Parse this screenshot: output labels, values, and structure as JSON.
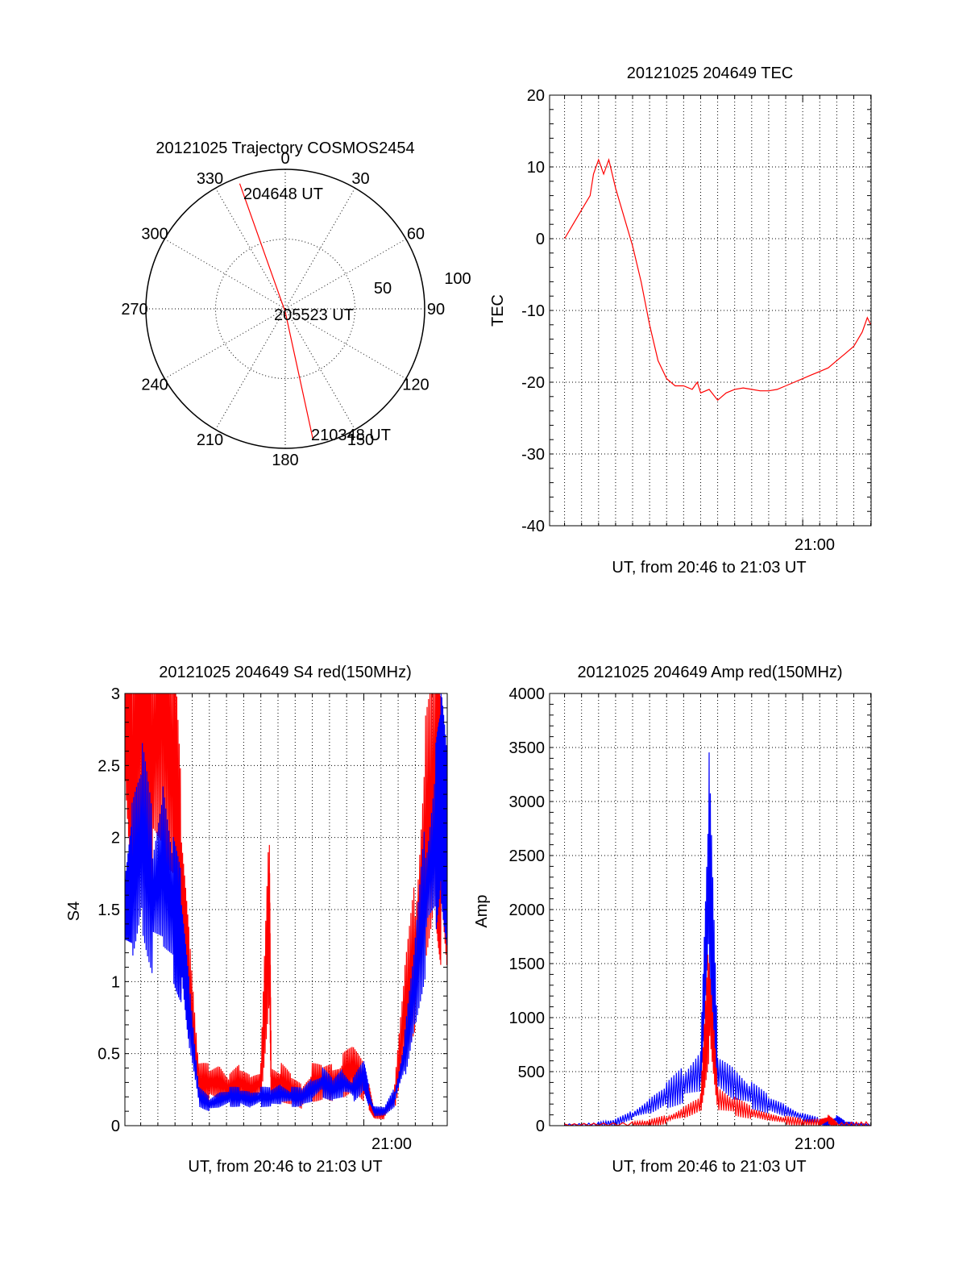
{
  "chart_data": [
    {
      "type": "polar",
      "title": "20121025 Trajectory COSMOS2454",
      "azimuth_labels": [
        "0",
        "30",
        "60",
        "90",
        "120",
        "150",
        "180",
        "210",
        "240",
        "270",
        "300",
        "330"
      ],
      "radius_labels": [
        "50",
        "100"
      ],
      "trajectory": {
        "color": "#ff0000",
        "start_label": "204648 UT",
        "mid_label": "205523 UT",
        "end_label": "210348 UT",
        "points": [
          {
            "az": 340,
            "zen": 86
          },
          {
            "az": 180,
            "zen": 2
          },
          {
            "az": 168,
            "zen": 86
          }
        ]
      }
    },
    {
      "type": "line",
      "title": "20121025 204649 TEC",
      "xlabel": "UT, from 20:46 to 21:03 UT",
      "ylabel": "TEC",
      "xlim": [
        20.752,
        21.067
      ],
      "ylim": [
        -40,
        20
      ],
      "yticks": [
        20,
        10,
        0,
        -10,
        -20,
        -30,
        -40
      ],
      "xtick_label": "21:00",
      "grid": true,
      "series": [
        {
          "color": "#ff0000",
          "x": [
            20.7667,
            20.775,
            20.7833,
            20.7917,
            20.795,
            20.8,
            20.805,
            20.81,
            20.8167,
            20.825,
            20.8333,
            20.8417,
            20.85,
            20.8583,
            20.8667,
            20.875,
            20.8833,
            20.8917,
            20.8967,
            20.9,
            20.9083,
            20.9167,
            20.925,
            20.9333,
            20.9417,
            20.95,
            20.9583,
            20.9667,
            20.975,
            20.9833,
            20.9917,
            21.0,
            21.0083,
            21.0167,
            21.025,
            21.0333,
            21.0417,
            21.05,
            21.0583,
            21.0633,
            21.0667
          ],
          "y": [
            0,
            2,
            4,
            6,
            9,
            11,
            9,
            11,
            7,
            3,
            -1,
            -6,
            -12,
            -17,
            -19.5,
            -20.5,
            -20.5,
            -21,
            -20,
            -21.5,
            -21,
            -22.5,
            -21.5,
            -21,
            -20.8,
            -21,
            -21.2,
            -21.2,
            -21,
            -20.5,
            -20,
            -19.5,
            -19,
            -18.5,
            -18,
            -17,
            -16,
            -15,
            -13,
            -11,
            -12
          ]
        }
      ]
    },
    {
      "type": "line",
      "title": "20121025 204649 S4 red(150MHz)",
      "xlabel": "UT, from 20:46 to 21:03 UT",
      "ylabel": "S4",
      "xlim": [
        20.768,
        21.081
      ],
      "ylim": [
        0,
        3
      ],
      "yticks": [
        3,
        2.5,
        2,
        1.5,
        1,
        0.5,
        0
      ],
      "xtick_label": "21:00",
      "grid": true,
      "series": [
        {
          "color": "#ff0000",
          "x": [
            20.768,
            20.775,
            20.785,
            20.795,
            20.805,
            20.815,
            20.823,
            20.83,
            20.84,
            20.85,
            20.86,
            20.87,
            20.88,
            20.89,
            20.9,
            20.9083,
            20.91,
            20.92,
            20.93,
            20.94,
            20.95,
            20.96,
            20.97,
            20.98,
            20.99,
            21.0,
            21.005,
            21.01,
            21.02,
            21.03,
            21.04,
            21.05,
            21.06,
            21.07,
            21.075,
            21.081
          ],
          "y": [
            3,
            2.4,
            3,
            2.6,
            3,
            2.4,
            1.6,
            1.0,
            0.3,
            0.3,
            0.3,
            0.25,
            0.3,
            0.25,
            0.3,
            1.5,
            0.3,
            0.3,
            0.25,
            0.2,
            0.3,
            0.3,
            0.3,
            0.35,
            0.4,
            0.3,
            0.2,
            0.08,
            0.08,
            0.2,
            0.8,
            1.2,
            2.0,
            2.4,
            2.0,
            1.6
          ]
        },
        {
          "color": "#0000ff",
          "x": [
            20.768,
            20.775,
            20.785,
            20.795,
            20.805,
            20.815,
            20.823,
            20.83,
            20.84,
            20.85,
            20.86,
            20.87,
            20.88,
            20.89,
            20.9,
            20.91,
            20.92,
            20.93,
            20.94,
            20.95,
            20.96,
            20.97,
            20.98,
            20.99,
            21.0,
            21.005,
            21.01,
            21.02,
            21.03,
            21.04,
            21.05,
            21.06,
            21.07,
            21.075,
            21.081
          ],
          "y": [
            1.5,
            1.7,
            2.0,
            1.6,
            1.8,
            1.5,
            1.3,
            0.8,
            0.2,
            0.15,
            0.18,
            0.2,
            0.2,
            0.18,
            0.2,
            0.2,
            0.22,
            0.2,
            0.2,
            0.25,
            0.3,
            0.25,
            0.3,
            0.25,
            0.35,
            0.2,
            0.1,
            0.1,
            0.2,
            0.5,
            1.0,
            1.6,
            2.0,
            2.3,
            1.9
          ]
        }
      ]
    },
    {
      "type": "line",
      "title": "20121025 204649 Amp red(150MHz)",
      "xlabel": "UT, from 20:46 to 21:03 UT",
      "ylabel": "Amp",
      "xlim": [
        20.752,
        21.067
      ],
      "ylim": [
        0,
        4000
      ],
      "yticks": [
        4000,
        3500,
        3000,
        2500,
        2000,
        1500,
        1000,
        500,
        0
      ],
      "xtick_label": "21:00",
      "grid": true,
      "series": [
        {
          "color": "#0000ff",
          "x": [
            20.7667,
            20.8,
            20.8167,
            20.8333,
            20.85,
            20.8667,
            20.8833,
            20.9,
            20.9083,
            20.9167,
            20.9333,
            20.95,
            20.9667,
            20.9833,
            21.0,
            21.0167,
            21.025,
            21.0333,
            21.0417,
            21.05,
            21.067
          ],
          "y": [
            0,
            0,
            30,
            100,
            180,
            280,
            380,
            500,
            2400,
            500,
            380,
            280,
            200,
            140,
            80,
            40,
            20,
            60,
            10,
            0,
            0
          ]
        },
        {
          "color": "#ff0000",
          "x": [
            20.7667,
            20.8333,
            20.85,
            20.8667,
            20.8833,
            20.9,
            20.9083,
            20.9167,
            20.9333,
            20.95,
            20.9667,
            20.9833,
            21.0,
            21.0167,
            21.025,
            21.0333,
            21.067
          ],
          "y": [
            0,
            0,
            20,
            60,
            120,
            200,
            1200,
            250,
            180,
            120,
            80,
            50,
            30,
            30,
            60,
            0,
            0
          ]
        }
      ]
    }
  ]
}
